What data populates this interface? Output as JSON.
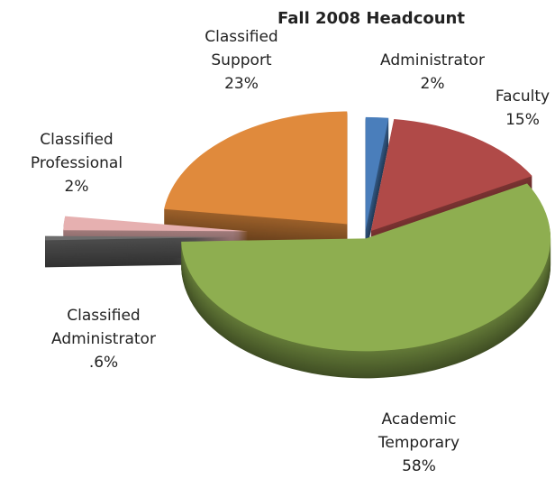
{
  "chart_data": {
    "type": "pie",
    "title": "Fall 2008 Headcount",
    "categories": [
      "Administrator",
      "Faculty",
      "Academic Temporary",
      "Classified Administrator",
      "Classified Professional",
      "Classified Support"
    ],
    "values": [
      2,
      15,
      58,
      0.6,
      2,
      23
    ],
    "value_labels": [
      "2%",
      "15%",
      "58%",
      ".6%",
      "2%",
      "23%"
    ],
    "colors": [
      "#4a7ebb",
      "#b04a48",
      "#8eae50",
      "#6d6d6d",
      "#e6b0b0",
      "#e08a3c"
    ]
  }
}
